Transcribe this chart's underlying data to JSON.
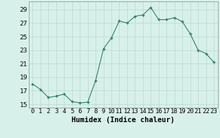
{
  "x": [
    0,
    1,
    2,
    3,
    4,
    5,
    6,
    7,
    8,
    9,
    10,
    11,
    12,
    13,
    14,
    15,
    16,
    17,
    18,
    19,
    20,
    21,
    22,
    23
  ],
  "y": [
    18.0,
    17.2,
    16.0,
    16.2,
    16.5,
    15.4,
    15.2,
    15.3,
    18.5,
    23.2,
    24.8,
    27.3,
    27.0,
    28.0,
    28.2,
    29.3,
    27.5,
    27.5,
    27.8,
    27.2,
    25.4,
    23.0,
    22.5,
    21.2
  ],
  "xlabel": "Humidex (Indice chaleur)",
  "xlim": [
    -0.5,
    23.5
  ],
  "ylim": [
    14.5,
    30.2
  ],
  "yticks": [
    15,
    17,
    19,
    21,
    23,
    25,
    27,
    29
  ],
  "xtick_labels": [
    "0",
    "1",
    "2",
    "3",
    "4",
    "5",
    "6",
    "7",
    "8",
    "9",
    "10",
    "11",
    "12",
    "13",
    "14",
    "15",
    "16",
    "17",
    "18",
    "19",
    "20",
    "21",
    "22",
    "23"
  ],
  "line_color": "#2d7a6a",
  "marker_color": "#2d7a6a",
  "bg_color": "#d8f0ea",
  "grid_color": "#b8d8d0",
  "xlabel_fontsize": 7.5,
  "tick_fontsize": 6.5
}
